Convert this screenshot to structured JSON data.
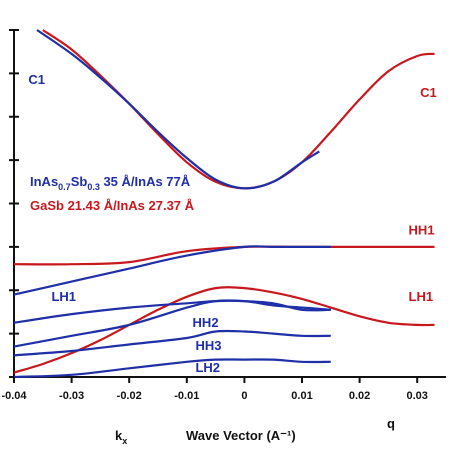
{
  "chart_data": {
    "type": "line",
    "title": "",
    "xlabel": "Wave Vector (A⁻¹)",
    "xlabel_left": "k",
    "xlabel_left_sub": "x",
    "xlabel_right": "q",
    "ylabel": "",
    "xlim": [
      -0.04,
      0.035
    ],
    "ylim": [
      0,
      8
    ],
    "xticks": [
      -0.04,
      -0.03,
      -0.02,
      -0.01,
      0,
      0.01,
      0.02,
      0.03
    ],
    "xtick_labels": [
      "-0.04",
      "-0.03",
      "-0.02",
      "-0.01",
      "0",
      "0.01",
      "0.02",
      "0.03"
    ],
    "colors": {
      "blue": "#1f2fa8",
      "red": "#c8181e",
      "axis": "#111111"
    },
    "legend": [
      {
        "color": "#1f2fa8",
        "parts": [
          {
            "text": "InAs",
            "sub": false
          },
          {
            "text": "0.7",
            "sub": true
          },
          {
            "text": "Sb",
            "sub": false
          },
          {
            "text": "0.3",
            "sub": true
          },
          {
            "text": " 35 Å/InAs 77Å",
            "sub": false
          }
        ]
      },
      {
        "color": "#c8181e",
        "parts": [
          {
            "text": "GaSb 21.43 Å/InAs 27.37 Å",
            "sub": false
          }
        ]
      }
    ],
    "curve_labels": [
      {
        "text": "C1",
        "color": "#1f2fa8",
        "x": -0.0375,
        "y": 6.75
      },
      {
        "text": "C1",
        "color": "#c8181e",
        "x": 0.0305,
        "y": 6.45
      },
      {
        "text": "HH1",
        "color": "#c8181e",
        "x": 0.0285,
        "y": 3.28
      },
      {
        "text": "LH1",
        "color": "#1f2fa8",
        "x": -0.0335,
        "y": 1.75
      },
      {
        "text": "LH1",
        "color": "#c8181e",
        "x": 0.0285,
        "y": 1.75
      },
      {
        "text": "HH2",
        "color": "#1f2fa8",
        "x": -0.009,
        "y": 1.15
      },
      {
        "text": "HH3",
        "color": "#1f2fa8",
        "x": -0.0085,
        "y": 0.62
      },
      {
        "text": "LH2",
        "color": "#1f2fa8",
        "x": -0.0085,
        "y": 0.12
      }
    ],
    "series": [
      {
        "color": "#c8181e",
        "x": [
          -0.035,
          -0.03,
          -0.025,
          -0.02,
          -0.015,
          -0.01,
          -0.005,
          0,
          0.005,
          0.01,
          0.015,
          0.02,
          0.025,
          0.03,
          0.033
        ],
        "y": [
          8.0,
          7.55,
          6.95,
          6.3,
          5.6,
          4.95,
          4.5,
          4.35,
          4.5,
          4.95,
          5.65,
          6.4,
          7.05,
          7.4,
          7.45
        ]
      },
      {
        "color": "#c8181e",
        "x": [
          -0.04,
          -0.03,
          -0.02,
          -0.01,
          0,
          0.01,
          0.02,
          0.03,
          0.033
        ],
        "y": [
          2.6,
          2.6,
          2.65,
          2.9,
          3.0,
          3.0,
          3.0,
          3.0,
          3.0
        ]
      },
      {
        "color": "#c8181e",
        "x": [
          -0.04,
          -0.035,
          -0.03,
          -0.025,
          -0.02,
          -0.015,
          -0.01,
          -0.005,
          0,
          0.005,
          0.01,
          0.015,
          0.02,
          0.025,
          0.03,
          0.033
        ],
        "y": [
          0.1,
          0.3,
          0.55,
          0.85,
          1.2,
          1.55,
          1.85,
          2.05,
          2.05,
          1.95,
          1.8,
          1.6,
          1.4,
          1.25,
          1.2,
          1.2
        ]
      },
      {
        "color": "#1f2fa8",
        "x": [
          -0.036,
          -0.03,
          -0.025,
          -0.02,
          -0.015,
          -0.01,
          -0.005,
          0,
          0.005,
          0.01,
          0.013
        ],
        "y": [
          8.0,
          7.45,
          6.9,
          6.3,
          5.65,
          5.05,
          4.55,
          4.35,
          4.5,
          4.95,
          5.2
        ]
      },
      {
        "color": "#1f2fa8",
        "x": [
          -0.04,
          -0.03,
          -0.02,
          -0.01,
          0,
          0.005,
          0.01,
          0.015
        ],
        "y": [
          1.9,
          2.2,
          2.5,
          2.8,
          3.0,
          3.0,
          3.0,
          3.0
        ]
      },
      {
        "color": "#1f2fa8",
        "x": [
          -0.04,
          -0.03,
          -0.02,
          -0.01,
          -0.005,
          0,
          0.005,
          0.01,
          0.015
        ],
        "y": [
          1.25,
          1.45,
          1.6,
          1.7,
          1.75,
          1.75,
          1.7,
          1.55,
          1.55
        ]
      },
      {
        "color": "#1f2fa8",
        "x": [
          -0.04,
          -0.03,
          -0.02,
          -0.01,
          -0.005,
          0,
          0.005,
          0.01,
          0.015
        ],
        "y": [
          0.7,
          0.95,
          1.2,
          1.6,
          1.75,
          1.75,
          1.65,
          1.6,
          1.55
        ]
      },
      {
        "color": "#1f2fa8",
        "x": [
          -0.04,
          -0.03,
          -0.02,
          -0.01,
          -0.005,
          0,
          0.005,
          0.01,
          0.015
        ],
        "y": [
          0.5,
          0.6,
          0.75,
          0.9,
          1.05,
          1.05,
          1.0,
          0.95,
          0.95
        ]
      },
      {
        "color": "#1f2fa8",
        "x": [
          -0.04,
          -0.03,
          -0.02,
          -0.01,
          -0.005,
          0,
          0.005,
          0.01,
          0.015
        ],
        "y": [
          0.0,
          0.05,
          0.2,
          0.35,
          0.4,
          0.4,
          0.4,
          0.35,
          0.35
        ]
      }
    ]
  }
}
